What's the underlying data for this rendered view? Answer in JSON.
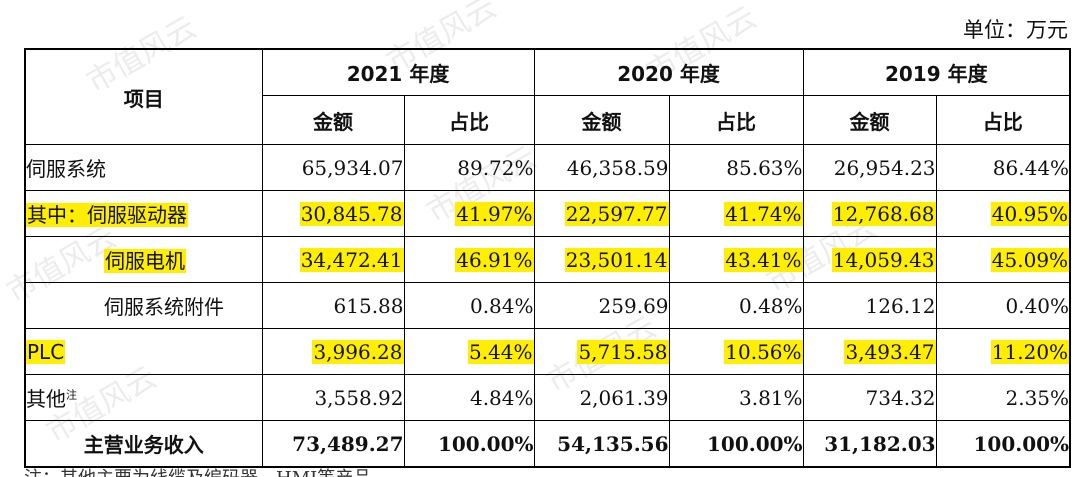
{
  "unit_label": "单位：万元",
  "watermark": "市值风云",
  "header": {
    "item": "项目",
    "years": [
      "2021 年度",
      "2020 年度",
      "2019 年度"
    ],
    "amount": "金额",
    "ratio": "占比"
  },
  "rows": [
    {
      "label": "伺服系统",
      "v": [
        "65,934.07",
        "89.72%",
        "46,358.59",
        "85.63%",
        "26,954.23",
        "86.44%"
      ]
    },
    {
      "label": "其中：伺服驱动器",
      "v": [
        "30,845.78",
        "41.97%",
        "22,597.77",
        "41.74%",
        "12,768.68",
        "40.95%"
      ]
    },
    {
      "label": "伺服电机",
      "v": [
        "34,472.41",
        "46.91%",
        "23,501.14",
        "43.41%",
        "14,059.43",
        "45.09%"
      ]
    },
    {
      "label": "伺服系统附件",
      "v": [
        "615.88",
        "0.84%",
        "259.69",
        "0.48%",
        "126.12",
        "0.40%"
      ]
    },
    {
      "label": "PLC",
      "v": [
        "3,996.28",
        "5.44%",
        "5,715.58",
        "10.56%",
        "3,493.47",
        "11.20%"
      ]
    },
    {
      "label": "其他",
      "label_sup": "注",
      "v": [
        "3,558.92",
        "4.84%",
        "2,061.39",
        "3.81%",
        "734.32",
        "2.35%"
      ]
    },
    {
      "label": "主营业务收入",
      "v": [
        "73,489.27",
        "100.00%",
        "54,135.56",
        "100.00%",
        "31,182.03",
        "100.00%"
      ]
    }
  ],
  "footer_note": "注：其他主要为线缆及编码器、HMI等产品",
  "highlight_color": "#ffee00"
}
